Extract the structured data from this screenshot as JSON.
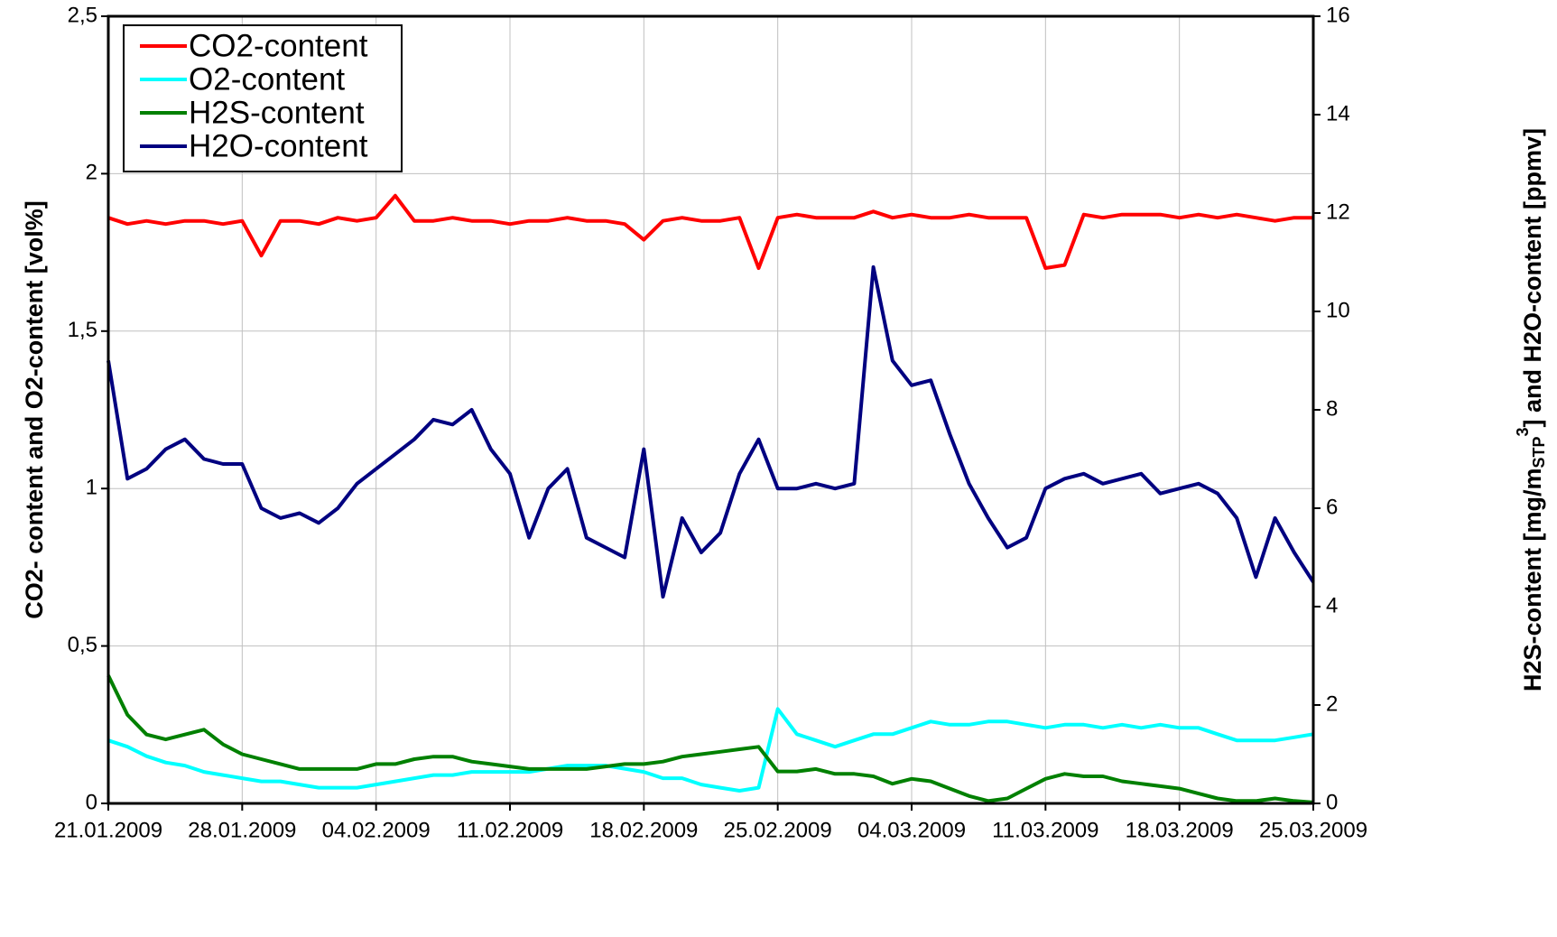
{
  "chart_data": {
    "type": "line",
    "ylabel": "CO2- content and O2-content [vol%]",
    "y2label_parts": [
      "H2S-content [mg/m",
      "STP",
      "3",
      "] and H2O-content [ppmv]"
    ],
    "x": [
      "2009-01-21",
      "2009-01-22",
      "2009-01-23",
      "2009-01-24",
      "2009-01-25",
      "2009-01-26",
      "2009-01-27",
      "2009-01-28",
      "2009-01-29",
      "2009-01-30",
      "2009-01-31",
      "2009-02-01",
      "2009-02-02",
      "2009-02-03",
      "2009-02-04",
      "2009-02-05",
      "2009-02-06",
      "2009-02-07",
      "2009-02-08",
      "2009-02-09",
      "2009-02-10",
      "2009-02-11",
      "2009-02-12",
      "2009-02-13",
      "2009-02-14",
      "2009-02-15",
      "2009-02-16",
      "2009-02-17",
      "2009-02-18",
      "2009-02-19",
      "2009-02-20",
      "2009-02-21",
      "2009-02-22",
      "2009-02-23",
      "2009-02-24",
      "2009-02-25",
      "2009-02-26",
      "2009-02-27",
      "2009-02-28",
      "2009-03-01",
      "2009-03-02",
      "2009-03-03",
      "2009-03-04",
      "2009-03-05",
      "2009-03-06",
      "2009-03-07",
      "2009-03-08",
      "2009-03-09",
      "2009-03-10",
      "2009-03-11",
      "2009-03-12",
      "2009-03-13",
      "2009-03-14",
      "2009-03-15",
      "2009-03-16",
      "2009-03-17",
      "2009-03-18",
      "2009-03-19",
      "2009-03-20",
      "2009-03-21",
      "2009-03-22",
      "2009-03-23",
      "2009-03-24",
      "2009-03-25"
    ],
    "xlim": [
      "2009-01-21",
      "2009-03-25"
    ],
    "xticks": [
      {
        "value": "2009-01-21",
        "label": "21.01.2009"
      },
      {
        "value": "2009-01-28",
        "label": "28.01.2009"
      },
      {
        "value": "2009-02-04",
        "label": "04.02.2009"
      },
      {
        "value": "2009-02-11",
        "label": "11.02.2009"
      },
      {
        "value": "2009-02-18",
        "label": "18.02.2009"
      },
      {
        "value": "2009-02-25",
        "label": "25.02.2009"
      },
      {
        "value": "2009-03-04",
        "label": "04.03.2009"
      },
      {
        "value": "2009-03-11",
        "label": "11.03.2009"
      },
      {
        "value": "2009-03-18",
        "label": "18.03.2009"
      },
      {
        "value": "2009-03-25",
        "label": "25.03.2009"
      }
    ],
    "ylim": [
      0,
      2.5
    ],
    "yticks": [
      0,
      {
        "value": 0.5,
        "label": "0,5"
      },
      1,
      {
        "value": 1.5,
        "label": "1,5"
      },
      2,
      {
        "value": 2.5,
        "label": "2,5"
      }
    ],
    "y2lim": [
      0,
      16
    ],
    "y2ticks": [
      0,
      2,
      4,
      6,
      8,
      10,
      12,
      14,
      16
    ],
    "grid": true,
    "legend": "upper left",
    "series": [
      {
        "name": "CO2-content",
        "color": "#ff0000",
        "axis": "y",
        "values": [
          1.86,
          1.84,
          1.85,
          1.84,
          1.85,
          1.85,
          1.84,
          1.85,
          1.74,
          1.85,
          1.85,
          1.84,
          1.86,
          1.85,
          1.86,
          1.93,
          1.85,
          1.85,
          1.86,
          1.85,
          1.85,
          1.84,
          1.85,
          1.85,
          1.86,
          1.85,
          1.85,
          1.84,
          1.79,
          1.85,
          1.86,
          1.85,
          1.85,
          1.86,
          1.7,
          1.86,
          1.87,
          1.86,
          1.86,
          1.86,
          1.88,
          1.86,
          1.87,
          1.86,
          1.86,
          1.87,
          1.86,
          1.86,
          1.86,
          1.7,
          1.71,
          1.87,
          1.86,
          1.87,
          1.87,
          1.87,
          1.86,
          1.87,
          1.86,
          1.87,
          1.86,
          1.85,
          1.86,
          1.86
        ]
      },
      {
        "name": "O2-content",
        "color": "#00ffff",
        "axis": "y",
        "values": [
          0.2,
          0.18,
          0.15,
          0.13,
          0.12,
          0.1,
          0.09,
          0.08,
          0.07,
          0.07,
          0.06,
          0.05,
          0.05,
          0.05,
          0.06,
          0.07,
          0.08,
          0.09,
          0.09,
          0.1,
          0.1,
          0.1,
          0.1,
          0.11,
          0.12,
          0.12,
          0.12,
          0.11,
          0.1,
          0.08,
          0.08,
          0.06,
          0.05,
          0.04,
          0.05,
          0.3,
          0.22,
          0.2,
          0.18,
          0.2,
          0.22,
          0.22,
          0.24,
          0.26,
          0.25,
          0.25,
          0.26,
          0.26,
          0.25,
          0.24,
          0.25,
          0.25,
          0.24,
          0.25,
          0.24,
          0.25,
          0.24,
          0.24,
          0.22,
          0.2,
          0.2,
          0.2,
          0.21,
          0.22
        ]
      },
      {
        "name": "H2S-content",
        "color": "#008000",
        "axis": "y2",
        "values": [
          2.6,
          1.8,
          1.4,
          1.3,
          1.4,
          1.5,
          1.2,
          1.0,
          0.9,
          0.8,
          0.7,
          0.7,
          0.7,
          0.7,
          0.8,
          0.8,
          0.9,
          0.95,
          0.95,
          0.85,
          0.8,
          0.75,
          0.7,
          0.7,
          0.7,
          0.7,
          0.75,
          0.8,
          0.8,
          0.85,
          0.95,
          1.0,
          1.05,
          1.1,
          1.15,
          0.65,
          0.65,
          0.7,
          0.6,
          0.6,
          0.55,
          0.4,
          0.5,
          0.45,
          0.3,
          0.15,
          0.05,
          0.1,
          0.3,
          0.5,
          0.6,
          0.55,
          0.55,
          0.45,
          0.4,
          0.35,
          0.3,
          0.2,
          0.1,
          0.05,
          0.05,
          0.1,
          0.05,
          0.02
        ]
      },
      {
        "name": "H2O-content",
        "color": "#000080",
        "axis": "y2",
        "values": [
          9.0,
          6.6,
          6.8,
          7.2,
          7.4,
          7.0,
          6.9,
          6.9,
          6.0,
          5.8,
          5.9,
          5.7,
          6.0,
          6.5,
          6.8,
          7.1,
          7.4,
          7.8,
          7.7,
          8.0,
          7.2,
          6.7,
          5.4,
          6.4,
          6.8,
          5.4,
          5.2,
          5.0,
          7.2,
          4.2,
          5.8,
          5.1,
          5.5,
          6.7,
          7.4,
          6.4,
          6.4,
          6.5,
          6.4,
          6.5,
          10.9,
          9.0,
          8.5,
          8.6,
          7.5,
          6.5,
          5.8,
          5.2,
          5.4,
          6.4,
          6.6,
          6.7,
          6.5,
          6.6,
          6.7,
          6.3,
          6.4,
          6.5,
          6.3,
          5.8,
          4.6,
          5.8,
          5.1,
          4.5
        ]
      }
    ]
  }
}
